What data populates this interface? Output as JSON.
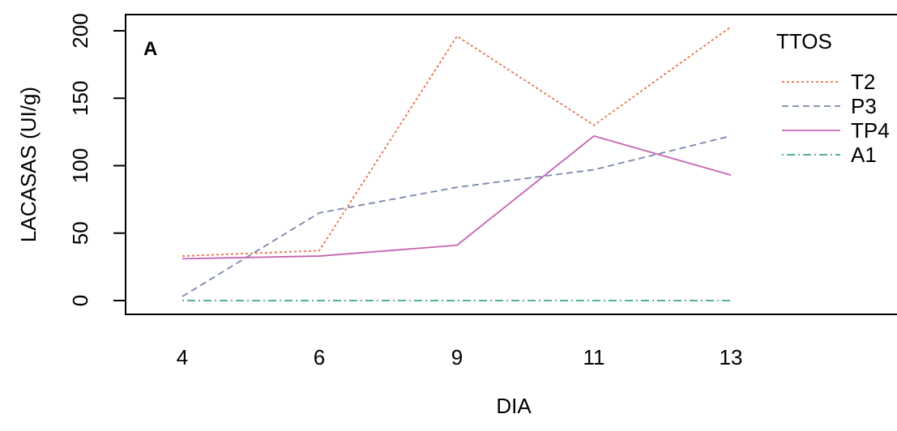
{
  "chart_data": {
    "type": "line",
    "panel_label": "A",
    "xlabel": "DIA",
    "ylabel": "LACASAS  (UI/g)",
    "x": [
      4,
      6,
      9,
      11,
      13
    ],
    "x_tick_labels": [
      "4",
      "6",
      "9",
      "11",
      "13"
    ],
    "y_ticks": [
      0,
      50,
      100,
      150,
      200
    ],
    "y_tick_labels": [
      "0",
      "50",
      "100",
      "150",
      "200"
    ],
    "ylim": [
      -10,
      210
    ],
    "grid": false,
    "legend": {
      "title": "TTOS",
      "position": "top-right"
    },
    "series": [
      {
        "name": "T2",
        "values": [
          33,
          37,
          196,
          130,
          203
        ],
        "color": "#e8704a",
        "line_style": "dotted"
      },
      {
        "name": "P3",
        "values": [
          3,
          65,
          84,
          97,
          122
        ],
        "color": "#7a86b0",
        "line_style": "dashed"
      },
      {
        "name": "TP4",
        "values": [
          31,
          33,
          41,
          122,
          93
        ],
        "color": "#c565b3",
        "line_style": "solid"
      },
      {
        "name": "A1",
        "values": [
          0,
          0,
          0,
          0,
          0
        ],
        "color": "#3fa67f",
        "line_style": "dotdash"
      }
    ]
  }
}
